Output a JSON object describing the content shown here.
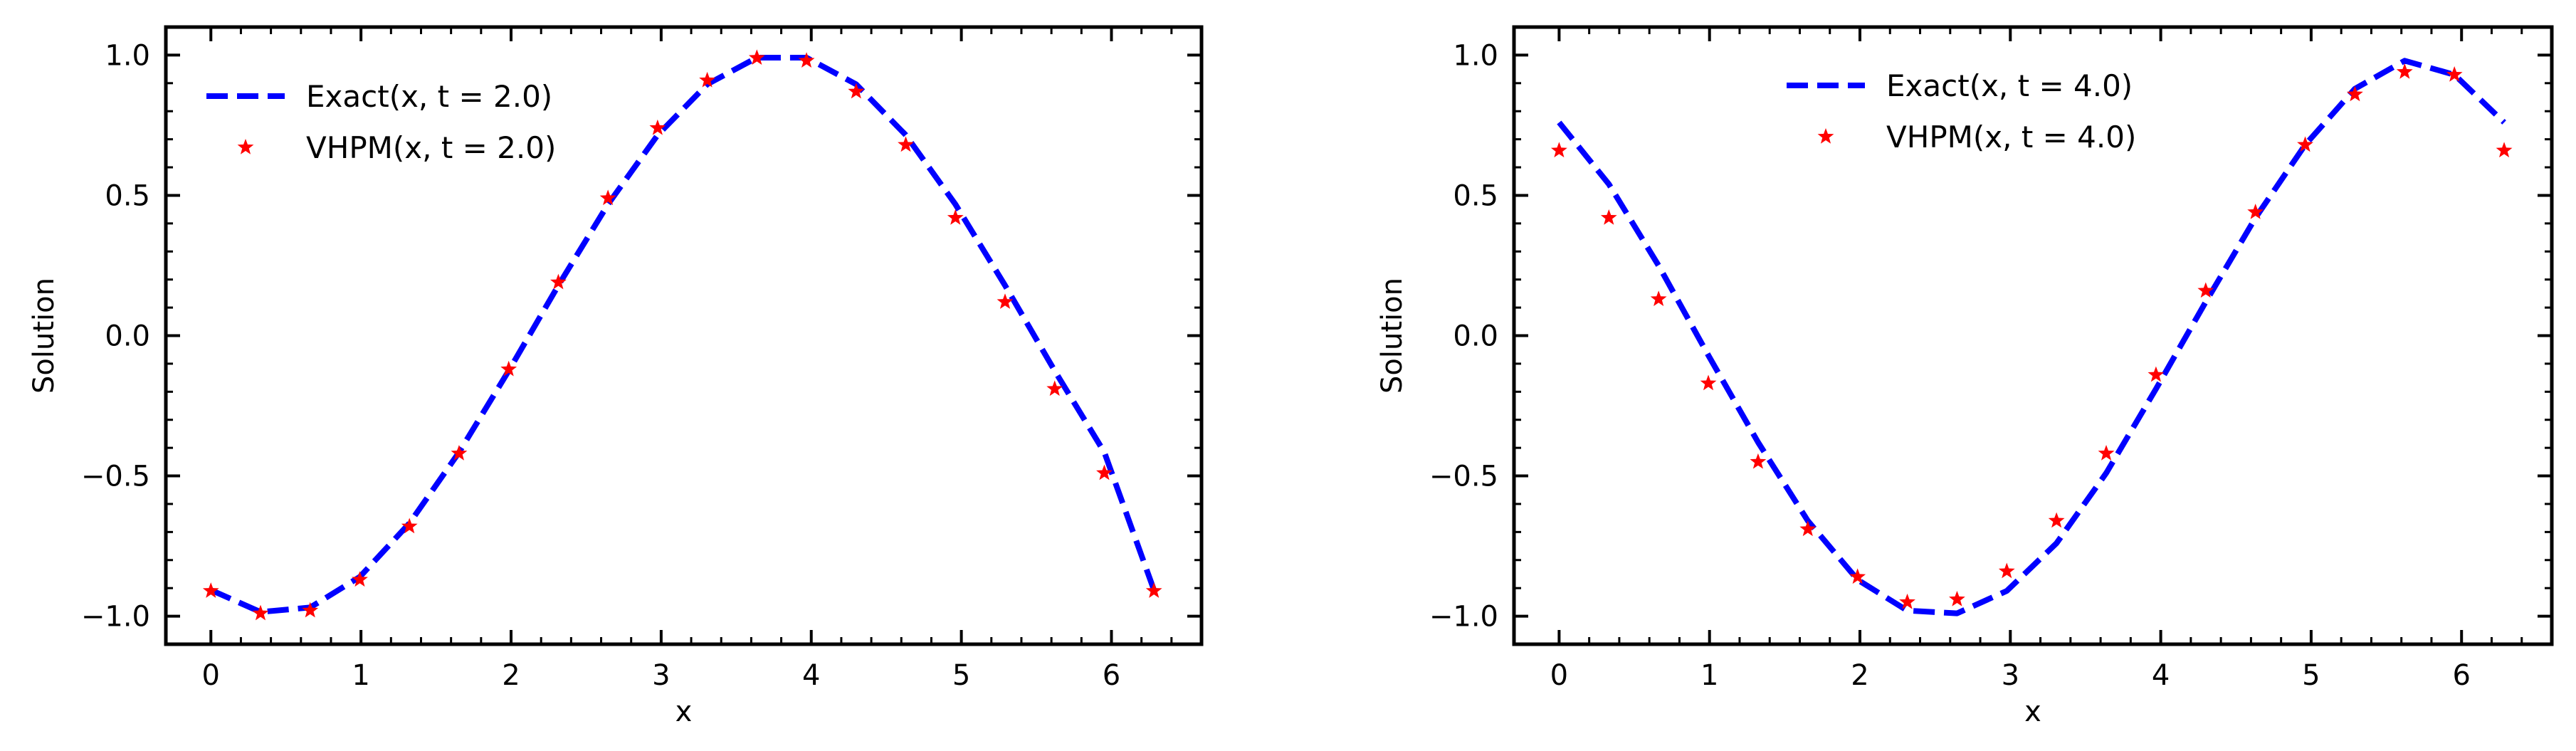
{
  "chart_data": [
    {
      "type": "line",
      "xlabel": "x",
      "ylabel": "Solution",
      "xlim": [
        -0.3,
        6.6
      ],
      "ylim": [
        -1.1,
        1.1
      ],
      "xticks": [
        0,
        1,
        2,
        3,
        4,
        5,
        6
      ],
      "yticks": [
        -1.0,
        -0.5,
        0.0,
        0.5,
        1.0
      ],
      "xtick_labels": [
        "0",
        "1",
        "2",
        "3",
        "4",
        "5",
        "6"
      ],
      "ytick_labels": [
        "−1.0",
        "−0.5",
        "0.0",
        "0.5",
        "1.0"
      ],
      "grid": false,
      "legend_position": "upper-left",
      "series": [
        {
          "name": "Exact(x, t = 2.0)",
          "style": "dashed-line",
          "color": "#0000ff",
          "x": [
            0,
            0.3307,
            0.6614,
            0.9921,
            1.3228,
            1.6535,
            1.9842,
            2.3149,
            2.6456,
            2.9762,
            3.3069,
            3.6376,
            3.9683,
            4.299,
            4.6297,
            4.9604,
            5.2911,
            5.6218,
            5.9525,
            6.2832
          ],
          "y": [
            -0.907,
            -0.985,
            -0.969,
            -0.86,
            -0.669,
            -0.416,
            -0.125,
            0.179,
            0.468,
            0.715,
            0.896,
            0.991,
            0.991,
            0.896,
            0.715,
            0.468,
            0.179,
            -0.125,
            -0.416,
            -0.907
          ]
        },
        {
          "name": "VHPM(x, t = 2.0)",
          "style": "star-markers",
          "color": "#ff0000",
          "x": [
            0,
            0.3307,
            0.6614,
            0.9921,
            1.3228,
            1.6535,
            1.9842,
            2.3149,
            2.6456,
            2.9762,
            3.3069,
            3.6376,
            3.9683,
            4.299,
            4.6297,
            4.9604,
            5.2911,
            5.6218,
            5.9525,
            6.2832
          ],
          "y": [
            -0.91,
            -0.99,
            -0.98,
            -0.87,
            -0.68,
            -0.42,
            -0.12,
            0.19,
            0.49,
            0.74,
            0.91,
            0.99,
            0.98,
            0.87,
            0.68,
            0.42,
            0.12,
            -0.19,
            -0.49,
            -0.91
          ]
        }
      ]
    },
    {
      "type": "line",
      "xlabel": "x",
      "ylabel": "Solution",
      "xlim": [
        -0.3,
        6.6
      ],
      "ylim": [
        -1.1,
        1.1
      ],
      "xticks": [
        0,
        1,
        2,
        3,
        4,
        5,
        6
      ],
      "yticks": [
        -1.0,
        -0.5,
        0.0,
        0.5,
        1.0
      ],
      "xtick_labels": [
        "0",
        "1",
        "2",
        "3",
        "4",
        "5",
        "6"
      ],
      "ytick_labels": [
        "−1.0",
        "−0.5",
        "0.0",
        "0.5",
        "1.0"
      ],
      "grid": false,
      "legend_position": "upper-center",
      "series": [
        {
          "name": "Exact(x, t = 4.0)",
          "style": "dashed-line",
          "color": "#0000ff",
          "x": [
            0,
            0.3307,
            0.6614,
            0.9921,
            1.3228,
            1.6535,
            1.9842,
            2.3149,
            2.6456,
            2.9762,
            3.3069,
            3.6376,
            3.9683,
            4.299,
            4.6297,
            4.9604,
            5.2911,
            5.6218,
            5.9525,
            6.2832
          ],
          "y": [
            0.76,
            0.54,
            0.25,
            -0.07,
            -0.38,
            -0.66,
            -0.87,
            -0.98,
            -0.99,
            -0.91,
            -0.74,
            -0.49,
            -0.19,
            0.12,
            0.42,
            0.68,
            0.88,
            0.98,
            0.93,
            0.76
          ]
        },
        {
          "name": "VHPM(x, t = 4.0)",
          "style": "star-markers",
          "color": "#ff0000",
          "x": [
            0,
            0.3307,
            0.6614,
            0.9921,
            1.3228,
            1.6535,
            1.9842,
            2.3149,
            2.6456,
            2.9762,
            3.3069,
            3.6376,
            3.9683,
            4.299,
            4.6297,
            4.9604,
            5.2911,
            5.6218,
            5.9525,
            6.2832
          ],
          "y": [
            0.66,
            0.42,
            0.13,
            -0.17,
            -0.45,
            -0.69,
            -0.86,
            -0.95,
            -0.94,
            -0.84,
            -0.66,
            -0.42,
            -0.14,
            0.16,
            0.44,
            0.68,
            0.86,
            0.94,
            0.93,
            0.66
          ]
        }
      ]
    }
  ]
}
